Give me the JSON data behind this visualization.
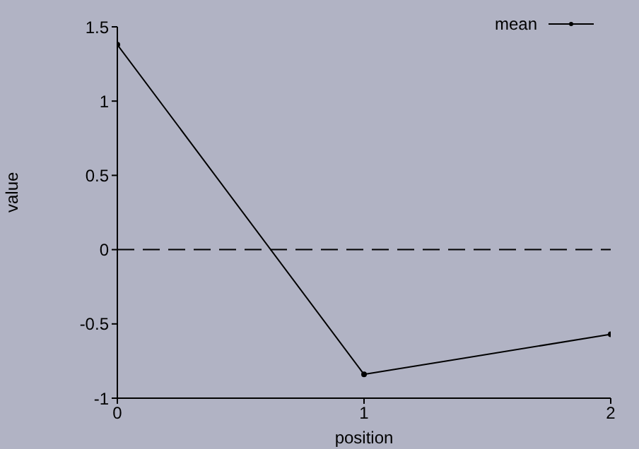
{
  "chart_data": {
    "type": "line",
    "xlabel": "position",
    "ylabel": "value",
    "x": [
      0,
      1,
      2
    ],
    "series": [
      {
        "name": "mean",
        "color": "#000000",
        "values": [
          1.38,
          -0.84,
          -0.57
        ]
      }
    ],
    "xlim": [
      0,
      2
    ],
    "xticks": [
      0,
      1,
      2
    ],
    "ylim": [
      -1,
      1.5
    ],
    "yticks": [
      -1,
      -0.5,
      0,
      0.5,
      1,
      1.5
    ],
    "ref_lines": [
      {
        "axis": "y",
        "value": 0,
        "color": "#000000",
        "line_style": "dashed"
      }
    ],
    "legend": "top right",
    "marker": "circle",
    "line_style": "solid",
    "grid": false
  }
}
